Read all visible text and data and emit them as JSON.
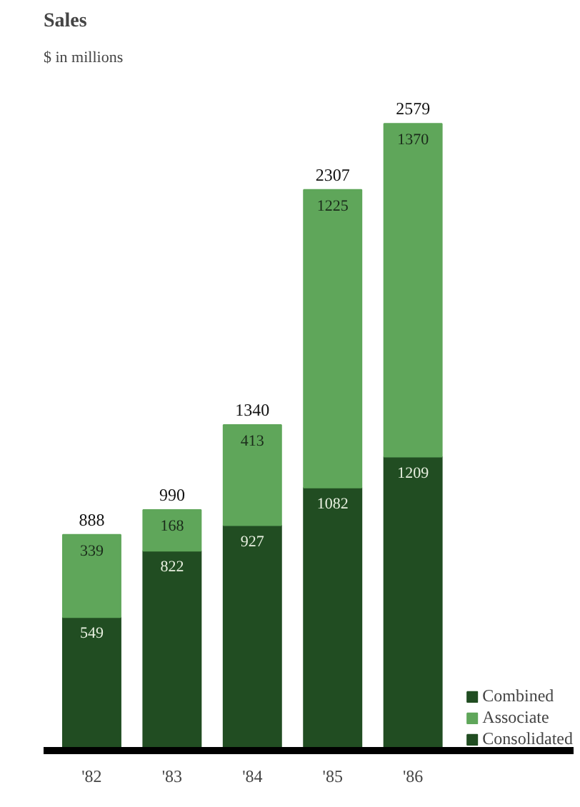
{
  "chart_data": {
    "type": "bar",
    "title": "Sales",
    "subtitle": "$ in millions",
    "categories": [
      "'82",
      "'83",
      "'84",
      "'85",
      "'86"
    ],
    "stacked": true,
    "data_labels": true,
    "series": [
      {
        "name": "Consolidated",
        "color": "#214d22",
        "values": [
          549,
          822,
          927,
          1082,
          1209
        ]
      },
      {
        "name": "Associate",
        "color": "#5fa65a",
        "values": [
          339,
          168,
          413,
          1225,
          1370
        ]
      }
    ],
    "totals": [
      "888",
      "990",
      "1340",
      "2307",
      "2579"
    ],
    "annotations": [
      "Combined"
    ],
    "legend": "bottom right",
    "grid": false
  }
}
